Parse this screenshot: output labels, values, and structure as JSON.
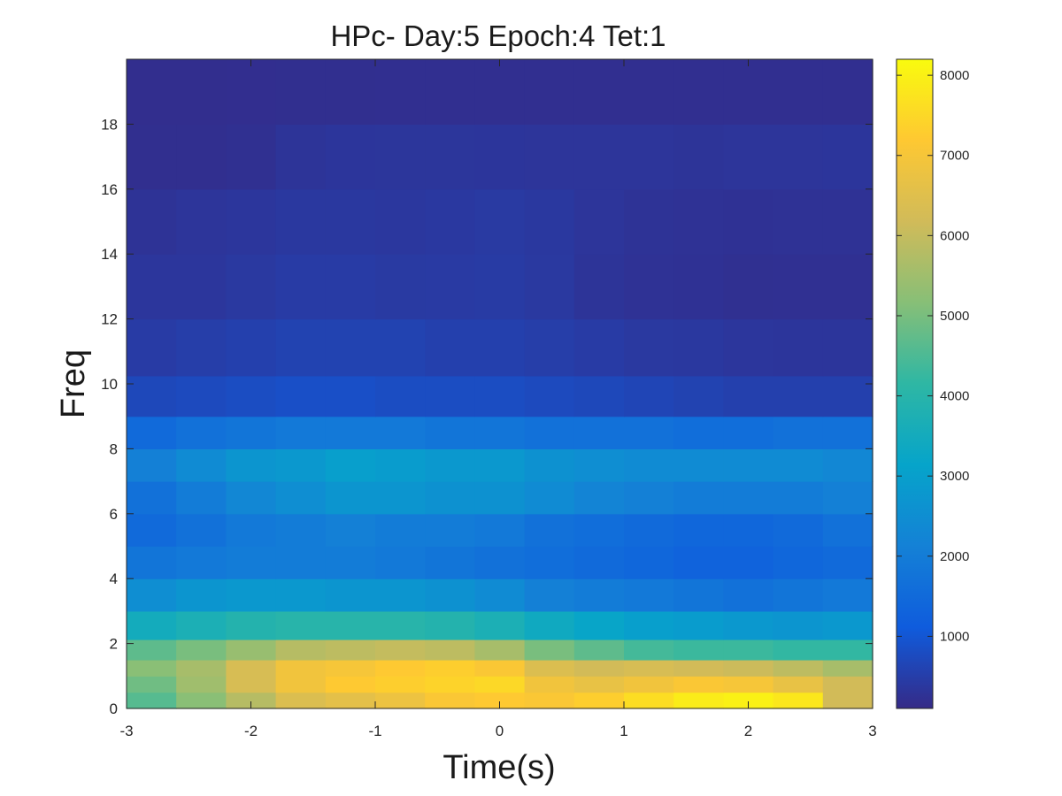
{
  "chart_data": {
    "type": "heatmap",
    "title": "HPc- Day:5 Epoch:4 Tet:1",
    "xlabel": "Time(s)",
    "ylabel": "Freq",
    "xlim": [
      -3,
      3
    ],
    "ylim": [
      0,
      20
    ],
    "xticks": [
      -3,
      -2,
      -1,
      0,
      1,
      2,
      3
    ],
    "yticks": [
      0,
      2,
      4,
      6,
      8,
      10,
      12,
      14,
      16,
      18
    ],
    "colorbar": {
      "colormap": "parula",
      "clim": [
        100,
        8200
      ],
      "ticks": [
        1000,
        2000,
        3000,
        4000,
        5000,
        6000,
        7000,
        8000
      ]
    },
    "x_bins": [
      -2.8,
      -2.4,
      -2.0,
      -1.6,
      -1.2,
      -0.8,
      -0.4,
      0.0,
      0.4,
      0.8,
      1.2,
      1.6,
      2.0,
      2.4,
      2.8
    ],
    "freq_bins": [
      0.25,
      0.75,
      1.25,
      1.75,
      2.5,
      3.5,
      4.5,
      5.5,
      6.5,
      7.5,
      8.5,
      9.5,
      11,
      13,
      15,
      17,
      19
    ],
    "power": [
      [
        4600,
        5200,
        5800,
        6400,
        6600,
        6800,
        7100,
        7200,
        7100,
        7300,
        7600,
        7900,
        8000,
        7800,
        6200
      ],
      [
        4900,
        5500,
        6300,
        6900,
        7200,
        7300,
        7400,
        7500,
        6900,
        6700,
        6900,
        7100,
        7000,
        6700,
        6200
      ],
      [
        5200,
        5600,
        6300,
        6900,
        7000,
        7200,
        7300,
        7100,
        6400,
        6200,
        6300,
        6200,
        6100,
        5900,
        5600
      ],
      [
        4700,
        5000,
        5400,
        5800,
        5900,
        6000,
        5900,
        5600,
        5000,
        4700,
        4400,
        4300,
        4300,
        4200,
        4200
      ],
      [
        3500,
        3700,
        3900,
        4000,
        4000,
        4000,
        3900,
        3700,
        3400,
        3200,
        3000,
        2900,
        2800,
        2700,
        2800
      ],
      [
        2500,
        2700,
        2800,
        2800,
        2700,
        2700,
        2600,
        2400,
        2100,
        2000,
        1900,
        1800,
        1700,
        1800,
        1900
      ],
      [
        1800,
        1900,
        2000,
        2000,
        2000,
        1900,
        1800,
        1700,
        1600,
        1500,
        1400,
        1300,
        1300,
        1400,
        1500
      ],
      [
        1500,
        1700,
        1900,
        2000,
        2100,
        2000,
        2000,
        1900,
        1700,
        1600,
        1500,
        1400,
        1400,
        1500,
        1700
      ],
      [
        1700,
        2000,
        2300,
        2500,
        2700,
        2700,
        2600,
        2600,
        2400,
        2200,
        2100,
        2000,
        2000,
        2000,
        2100
      ],
      [
        2100,
        2400,
        2700,
        2800,
        3000,
        2900,
        2800,
        2800,
        2600,
        2500,
        2400,
        2400,
        2400,
        2400,
        2300
      ],
      [
        1500,
        1700,
        1800,
        1900,
        1900,
        1900,
        1800,
        1800,
        1700,
        1700,
        1700,
        1600,
        1600,
        1700,
        1700
      ],
      [
        700,
        750,
        800,
        850,
        850,
        800,
        800,
        800,
        750,
        700,
        650,
        600,
        550,
        550,
        550
      ],
      [
        450,
        500,
        550,
        600,
        600,
        600,
        550,
        550,
        500,
        450,
        400,
        380,
        350,
        330,
        330
      ],
      [
        350,
        350,
        400,
        450,
        450,
        420,
        430,
        440,
        400,
        300,
        260,
        250,
        220,
        230,
        230
      ],
      [
        280,
        320,
        350,
        380,
        380,
        370,
        390,
        420,
        380,
        320,
        280,
        260,
        250,
        260,
        260
      ],
      [
        200,
        200,
        220,
        300,
        330,
        340,
        340,
        330,
        320,
        320,
        320,
        300,
        320,
        320,
        330
      ],
      [
        180,
        180,
        190,
        200,
        200,
        210,
        210,
        210,
        210,
        210,
        210,
        210,
        210,
        210,
        210
      ]
    ]
  }
}
